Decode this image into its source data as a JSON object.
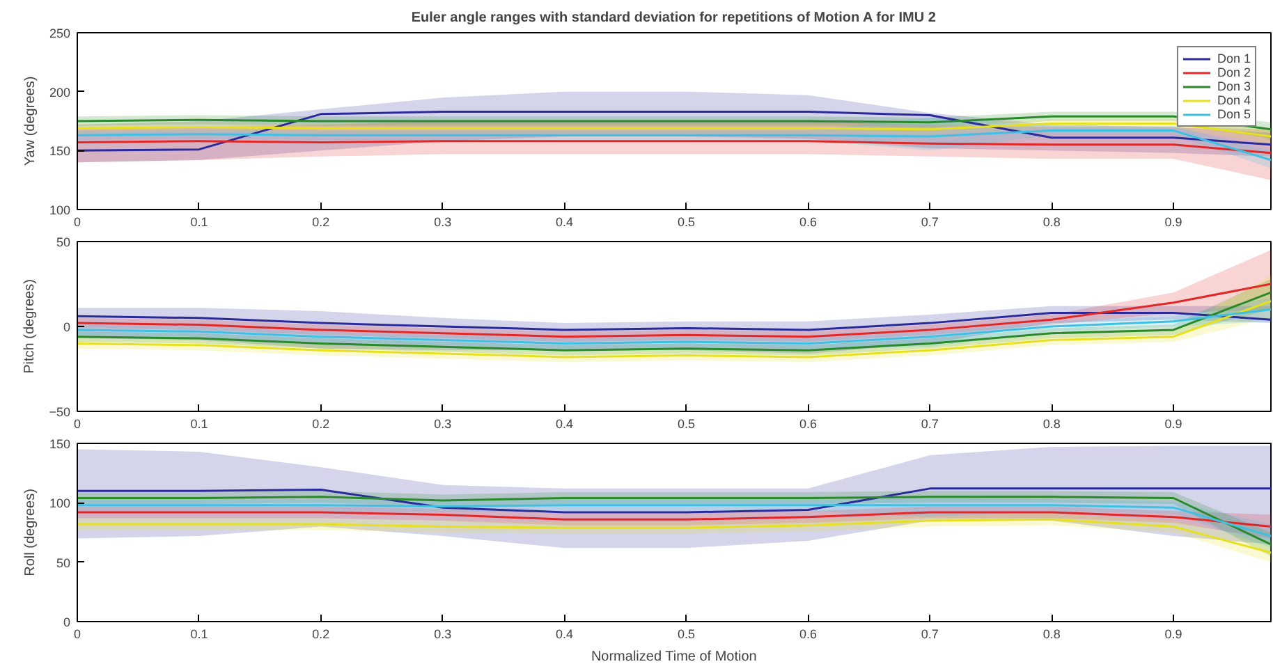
{
  "chart_data": [
    {
      "type": "line",
      "title": "Euler angle ranges with standard deviation for repetitions of Motion A for IMU 2",
      "ylabel": "Yaw (degrees)",
      "x": [
        0,
        0.1,
        0.2,
        0.3,
        0.4,
        0.5,
        0.6,
        0.7,
        0.8,
        0.9,
        0.98
      ],
      "xlim": [
        0,
        0.98
      ],
      "xticks": [
        0,
        0.1,
        0.2,
        0.3,
        0.4,
        0.5,
        0.6,
        0.7,
        0.8,
        0.9
      ],
      "ylim": [
        100,
        250
      ],
      "yticks": [
        100,
        150,
        200,
        250
      ],
      "legend": "top right",
      "grid": false,
      "series": [
        {
          "name": "Don 1",
          "color": "#2a2a9a",
          "values": [
            150,
            151,
            181,
            183,
            183,
            183,
            183,
            180,
            161,
            161,
            155
          ],
          "lower": [
            140,
            142,
            150,
            158,
            162,
            162,
            160,
            152,
            150,
            148,
            145
          ],
          "upper": [
            172,
            175,
            185,
            195,
            200,
            200,
            197,
            182,
            172,
            170,
            165
          ]
        },
        {
          "name": "Don 2",
          "color": "#e02828",
          "values": [
            157,
            158,
            157,
            158,
            158,
            158,
            158,
            156,
            155,
            155,
            148
          ],
          "lower": [
            140,
            142,
            145,
            147,
            147,
            147,
            147,
            145,
            143,
            143,
            125
          ],
          "upper": [
            168,
            170,
            172,
            175,
            175,
            175,
            175,
            172,
            170,
            170,
            168
          ]
        },
        {
          "name": "Don 3",
          "color": "#2a8a2a",
          "values": [
            175,
            176,
            175,
            175,
            175,
            175,
            175,
            174,
            179,
            179,
            168
          ],
          "lower": [
            171,
            172,
            171,
            171,
            171,
            171,
            171,
            170,
            175,
            175,
            160
          ],
          "upper": [
            179,
            180,
            179,
            179,
            179,
            179,
            179,
            178,
            183,
            183,
            174
          ]
        },
        {
          "name": "Don 4",
          "color": "#e6e020",
          "values": [
            169,
            170,
            169,
            169,
            169,
            169,
            169,
            168,
            173,
            173,
            162
          ],
          "lower": [
            165,
            166,
            165,
            165,
            165,
            165,
            165,
            164,
            169,
            169,
            156
          ],
          "upper": [
            173,
            174,
            173,
            173,
            173,
            173,
            173,
            172,
            177,
            177,
            168
          ]
        },
        {
          "name": "Don 5",
          "color": "#40c0e0",
          "values": [
            163,
            164,
            163,
            163,
            163,
            163,
            163,
            162,
            167,
            167,
            142
          ],
          "lower": [
            159,
            160,
            159,
            159,
            159,
            159,
            159,
            150,
            163,
            163,
            135
          ],
          "upper": [
            167,
            168,
            167,
            167,
            167,
            167,
            167,
            178,
            171,
            171,
            150
          ]
        }
      ]
    },
    {
      "type": "line",
      "ylabel": "Pitch (degrees)",
      "x": [
        0,
        0.1,
        0.2,
        0.3,
        0.4,
        0.5,
        0.6,
        0.7,
        0.8,
        0.9,
        0.98
      ],
      "xlim": [
        0,
        0.98
      ],
      "xticks": [
        0,
        0.1,
        0.2,
        0.3,
        0.4,
        0.5,
        0.6,
        0.7,
        0.8,
        0.9
      ],
      "ylim": [
        -50,
        50
      ],
      "yticks": [
        -50,
        0,
        50
      ],
      "grid": false,
      "series": [
        {
          "color": "#2a2a9a",
          "values": [
            6,
            5,
            2,
            0,
            -2,
            -1,
            -2,
            2,
            8,
            8,
            4
          ],
          "lower": [
            -7,
            -8,
            -13,
            -14,
            -14,
            -14,
            -16,
            -10,
            2,
            4,
            2
          ],
          "upper": [
            11,
            11,
            9,
            5,
            2,
            3,
            3,
            7,
            12,
            12,
            12
          ]
        },
        {
          "color": "#e02828",
          "values": [
            2,
            1,
            -2,
            -4,
            -6,
            -5,
            -6,
            -2,
            4,
            14,
            25
          ],
          "lower": [
            -1,
            -2,
            -5,
            -7,
            -9,
            -8,
            -9,
            -5,
            1,
            8,
            10
          ],
          "upper": [
            5,
            4,
            1,
            -1,
            -3,
            -2,
            -3,
            1,
            7,
            20,
            45
          ]
        },
        {
          "color": "#2a8a2a",
          "values": [
            -6,
            -7,
            -10,
            -12,
            -14,
            -13,
            -14,
            -10,
            -4,
            -2,
            20
          ],
          "lower": [
            -9,
            -10,
            -13,
            -15,
            -17,
            -16,
            -17,
            -13,
            -7,
            -5,
            10
          ],
          "upper": [
            -3,
            -4,
            -7,
            -9,
            -11,
            -10,
            -11,
            -7,
            -1,
            1,
            28
          ]
        },
        {
          "color": "#e6e020",
          "values": [
            -10,
            -11,
            -14,
            -16,
            -18,
            -17,
            -18,
            -14,
            -8,
            -6,
            15
          ],
          "lower": [
            -13,
            -14,
            -17,
            -19,
            -21,
            -20,
            -21,
            -17,
            -11,
            -9,
            5
          ],
          "upper": [
            -7,
            -8,
            -11,
            -13,
            -15,
            -14,
            -15,
            -11,
            -5,
            -3,
            30
          ]
        },
        {
          "color": "#40c0e0",
          "values": [
            -2,
            -3,
            -6,
            -8,
            -10,
            -9,
            -10,
            -6,
            0,
            3,
            10
          ],
          "lower": [
            -5,
            -6,
            -9,
            -11,
            -13,
            -12,
            -13,
            -12,
            -3,
            0,
            3
          ],
          "upper": [
            1,
            0,
            -3,
            -5,
            -7,
            -6,
            -7,
            -3,
            3,
            6,
            17
          ]
        }
      ]
    },
    {
      "type": "line",
      "ylabel": "Roll (degrees)",
      "xlabel": "Normalized Time of Motion",
      "x": [
        0,
        0.1,
        0.2,
        0.3,
        0.4,
        0.5,
        0.6,
        0.7,
        0.8,
        0.9,
        0.98
      ],
      "xlim": [
        0,
        0.98
      ],
      "xticks": [
        0,
        0.1,
        0.2,
        0.3,
        0.4,
        0.5,
        0.6,
        0.7,
        0.8,
        0.9
      ],
      "ylim": [
        0,
        150
      ],
      "yticks": [
        0,
        50,
        100,
        150
      ],
      "grid": false,
      "series": [
        {
          "color": "#2a2a9a",
          "values": [
            110,
            110,
            111,
            96,
            92,
            92,
            94,
            112,
            112,
            112,
            112
          ],
          "lower": [
            70,
            72,
            80,
            72,
            62,
            62,
            68,
            85,
            85,
            72,
            65
          ],
          "upper": [
            145,
            143,
            130,
            115,
            112,
            112,
            112,
            140,
            147,
            148,
            148
          ]
        },
        {
          "color": "#e02828",
          "values": [
            92,
            92,
            92,
            90,
            86,
            86,
            88,
            92,
            92,
            88,
            80
          ],
          "lower": [
            87,
            87,
            87,
            85,
            81,
            81,
            83,
            87,
            87,
            83,
            70
          ],
          "upper": [
            97,
            97,
            97,
            95,
            91,
            91,
            93,
            97,
            97,
            93,
            90
          ]
        },
        {
          "color": "#2a8a2a",
          "values": [
            104,
            104,
            105,
            102,
            104,
            104,
            104,
            105,
            105,
            104,
            65
          ],
          "lower": [
            99,
            99,
            100,
            97,
            99,
            99,
            99,
            100,
            100,
            99,
            55
          ],
          "upper": [
            109,
            109,
            110,
            107,
            109,
            109,
            109,
            110,
            110,
            109,
            75
          ]
        },
        {
          "color": "#e6e020",
          "values": [
            82,
            82,
            82,
            80,
            79,
            79,
            81,
            85,
            86,
            80,
            58
          ],
          "lower": [
            77,
            77,
            77,
            75,
            74,
            74,
            76,
            80,
            81,
            75,
            50
          ],
          "upper": [
            87,
            87,
            87,
            85,
            84,
            84,
            86,
            90,
            91,
            85,
            68
          ]
        },
        {
          "color": "#40c0e0",
          "values": [
            98,
            98,
            98,
            97,
            98,
            98,
            98,
            98,
            98,
            96,
            72
          ],
          "lower": [
            93,
            93,
            93,
            92,
            93,
            93,
            93,
            88,
            93,
            91,
            62
          ],
          "upper": [
            103,
            103,
            103,
            102,
            103,
            103,
            103,
            104,
            103,
            101,
            82
          ]
        }
      ]
    }
  ]
}
